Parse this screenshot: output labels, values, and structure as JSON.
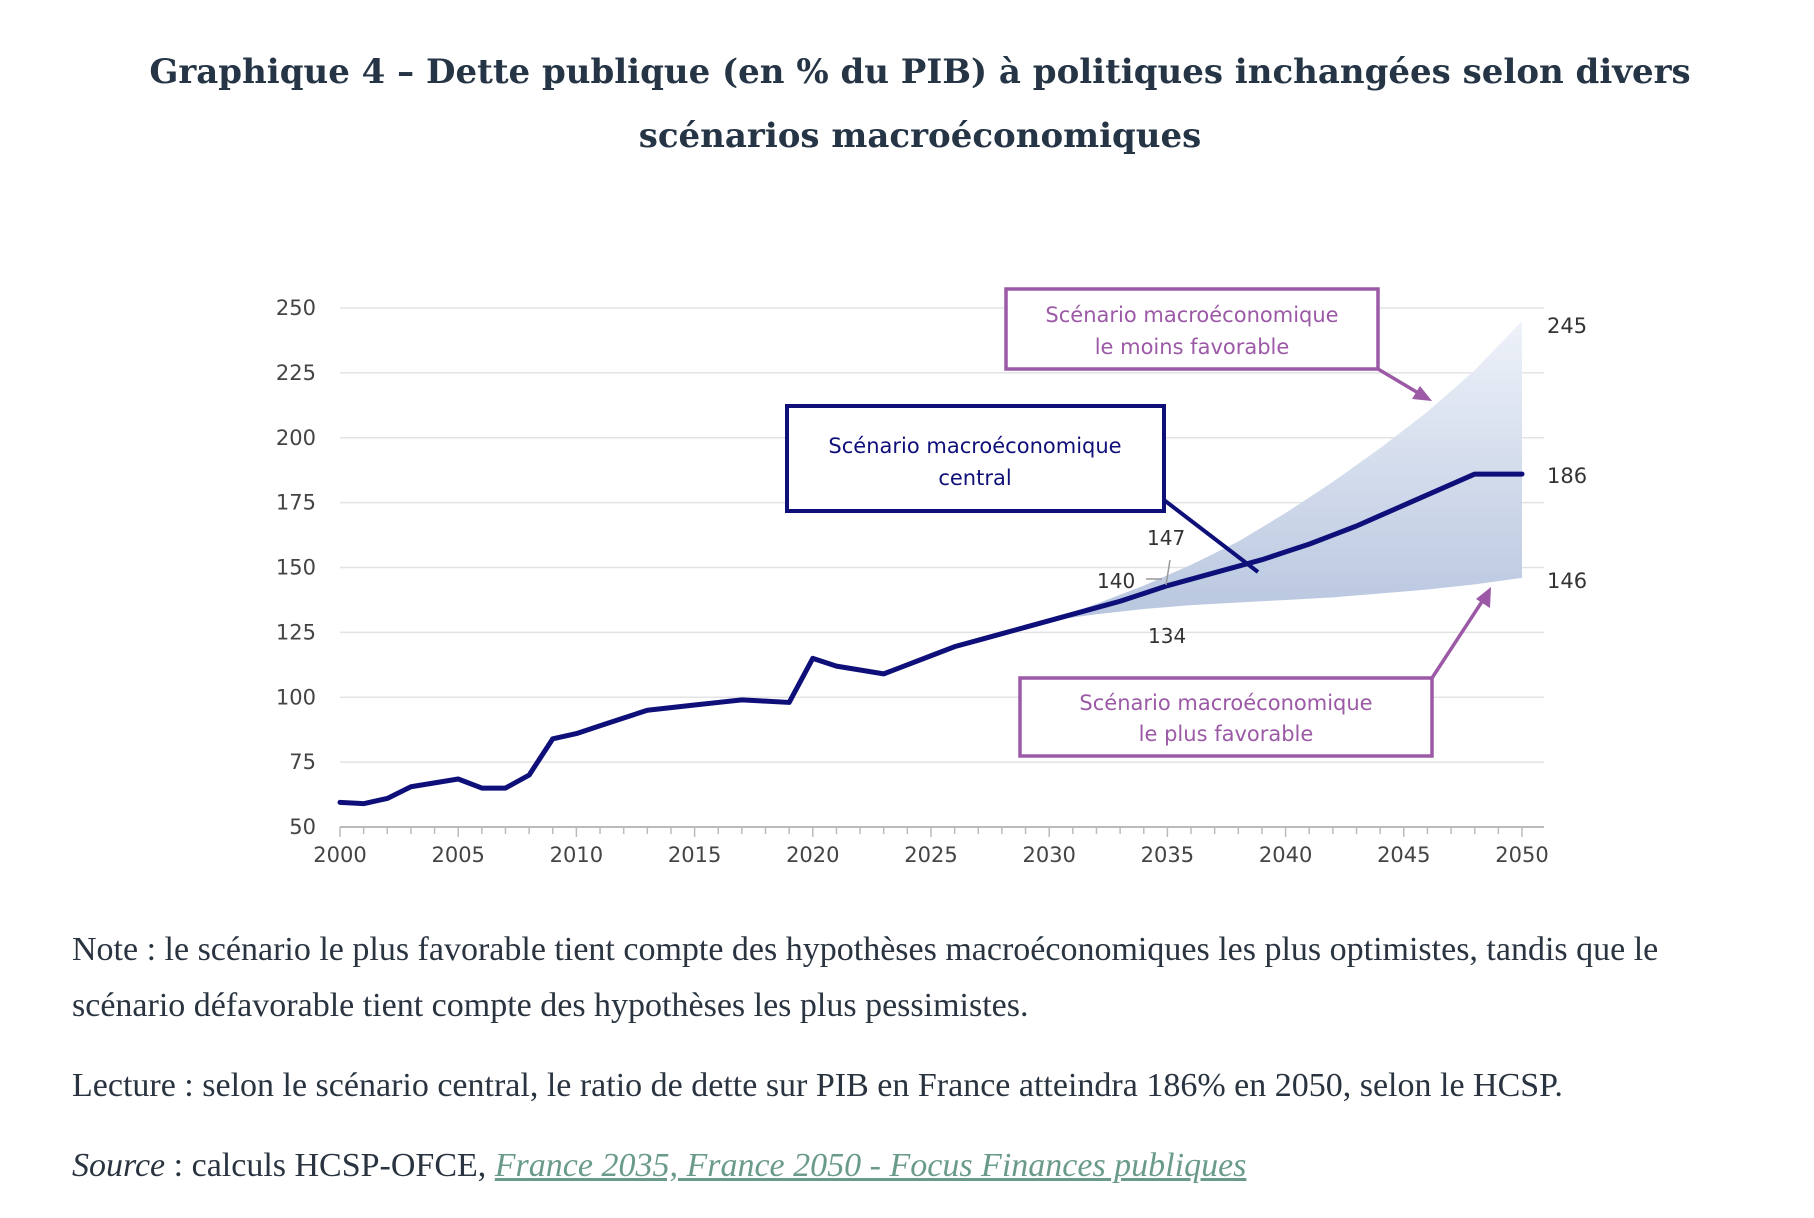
{
  "title": "Graphique 4 – Dette publique (en % du PIB) à politiques inchangées selon divers scénarios macroéconomiques",
  "notes": {
    "note": "Note : le scénario le plus favorable tient compte des hypothèses macroéconomiques les plus optimistes, tandis que le scénario défavorable tient compte des hypothèses les plus pessimistes.",
    "lecture": "Lecture : selon le scénario central, le ratio de dette sur PIB en France atteindra 186% en 2050, selon le HCSP.",
    "source_label": "Source",
    "source_sep": " : calculs HCSP-OFCE, ",
    "source_link": "France 2035, France 2050 - Focus Finances publiques"
  },
  "colors": {
    "central": "#0f0f7a",
    "scenario": "#9b59a6",
    "band_top": "#eef2f9",
    "band_bottom": "#b8c6df",
    "grid": "#e3e3e3"
  },
  "chart_data": {
    "type": "area",
    "xlim": [
      2000,
      2050
    ],
    "ylim": [
      50,
      250
    ],
    "x_ticks": [
      "2000",
      "2005",
      "2010",
      "2015",
      "2020",
      "2025",
      "2030",
      "2035",
      "2040",
      "2045",
      "2050"
    ],
    "y_ticks": [
      "250",
      "225",
      "200",
      "175",
      "150",
      "125",
      "100",
      "75",
      "50"
    ],
    "series": [
      {
        "name": "Scénario macroéconomique central",
        "x": [
          2000,
          2001,
          2002,
          2003,
          2004,
          2005,
          2006,
          2007,
          2008,
          2009,
          2010,
          2011,
          2012,
          2013,
          2014,
          2015,
          2016,
          2017,
          2018,
          2019,
          2020,
          2021,
          2022,
          2023,
          2024,
          2025,
          2026,
          2027,
          2028,
          2029,
          2030,
          2031,
          2032,
          2033,
          2034,
          2035,
          2036,
          2037,
          2038,
          2039,
          2040,
          2041,
          2042,
          2043,
          2044,
          2045,
          2046,
          2047,
          2048,
          2049,
          2050
        ],
        "values": [
          59.5,
          59,
          61,
          65.5,
          67,
          68.5,
          65,
          65,
          70,
          84,
          86,
          89,
          92,
          95,
          96,
          97,
          98,
          99,
          98.5,
          98,
          115,
          112,
          110.5,
          109,
          112.5,
          116,
          119.5,
          122,
          124.5,
          127,
          129.5,
          132,
          134.5,
          137,
          140,
          143,
          145.5,
          148,
          150.5,
          153,
          156,
          159,
          162.5,
          166,
          170,
          174,
          178,
          182,
          186,
          186,
          186
        ]
      },
      {
        "name": "Scénario macroéconomique le moins favorable",
        "x": [
          2030,
          2032,
          2034,
          2036,
          2038,
          2040,
          2042,
          2044,
          2046,
          2048,
          2050
        ],
        "values": [
          129.5,
          136,
          143,
          151,
          160,
          171,
          183,
          196,
          210,
          226,
          245
        ]
      },
      {
        "name": "Scénario macroéconomique le plus favorable",
        "x": [
          2030,
          2032,
          2034,
          2036,
          2038,
          2040,
          2042,
          2044,
          2046,
          2048,
          2050
        ],
        "values": [
          129.5,
          132,
          134,
          135.5,
          136.5,
          137.5,
          138.5,
          140,
          141.5,
          143.5,
          146
        ]
      }
    ],
    "callouts": {
      "worst": [
        "Scénario macroéconomique",
        "le moins favorable"
      ],
      "central": [
        "Scénario macroéconomique",
        "central"
      ],
      "best": [
        "Scénario macroéconomique",
        "le plus favorable"
      ]
    },
    "end_labels": {
      "worst": "245",
      "central": "186",
      "best": "146"
    },
    "point_labels": {
      "p147": "147",
      "p140": "140",
      "p134": "134"
    }
  }
}
